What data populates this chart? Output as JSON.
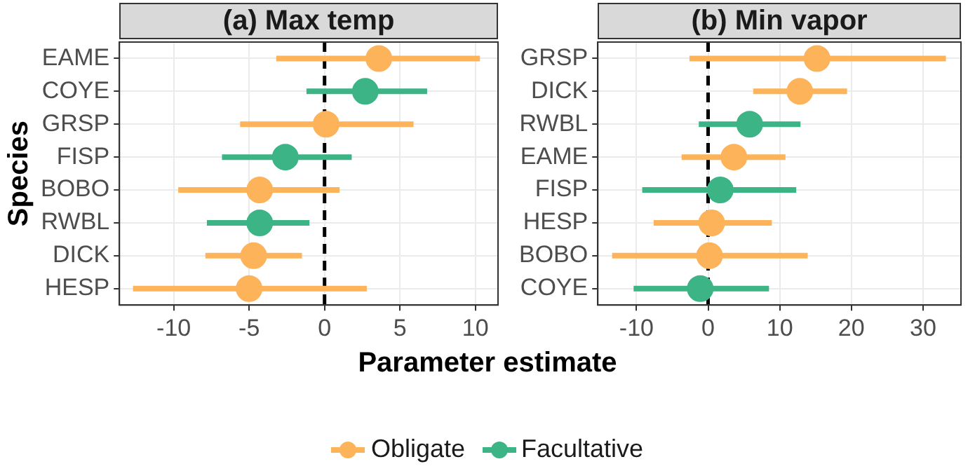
{
  "chart_data": [
    {
      "type": "scatter",
      "orientation": "horizontal",
      "title": "(a) Max temp",
      "xlabel": "Parameter estimate",
      "ylabel": "Species",
      "categories": [
        "EAME",
        "COYE",
        "GRSP",
        "FISP",
        "BOBO",
        "RWBL",
        "DICK",
        "HESP"
      ],
      "series": [
        {
          "name": "Obligate",
          "color": "#fdb35a",
          "values": [
            3.6,
            null,
            0.1,
            null,
            -4.3,
            null,
            -4.7,
            -5.0
          ],
          "errors": [
            [
              -3.2,
              10.3
            ],
            null,
            [
              -5.6,
              5.9
            ],
            null,
            [
              -9.7,
              1.0
            ],
            null,
            [
              -7.9,
              -1.5
            ],
            [
              -12.7,
              2.8
            ]
          ]
        },
        {
          "name": "Facultative",
          "color": "#3cb486",
          "values": [
            null,
            2.7,
            null,
            -2.6,
            null,
            -4.3,
            null,
            null
          ],
          "errors": [
            null,
            [
              -1.2,
              6.8
            ],
            null,
            [
              -6.8,
              1.8
            ],
            null,
            [
              -7.8,
              -1.0
            ],
            null,
            null
          ]
        }
      ],
      "xlim": [
        -13.6,
        11.5
      ],
      "xticks": [
        -10,
        -5,
        0,
        5,
        10
      ],
      "grid": true,
      "marker": "circle",
      "legend": "bottom",
      "ref_lines": [
        {
          "axis": "x",
          "value": 0,
          "line_style": "dashed",
          "color": "#000000"
        }
      ]
    },
    {
      "type": "scatter",
      "orientation": "horizontal",
      "title": "(b) Min vapor",
      "categories": [
        "GRSP",
        "DICK",
        "RWBL",
        "EAME",
        "FISP",
        "HESP",
        "BOBO",
        "COYE"
      ],
      "series": [
        {
          "color": "#fdb35a",
          "values": [
            15.2,
            12.8,
            null,
            3.6,
            null,
            0.5,
            0.2,
            null
          ],
          "errors": [
            [
              -2.6,
              33.2
            ],
            [
              6.3,
              19.4
            ],
            null,
            [
              -3.7,
              10.8
            ],
            null,
            [
              -7.6,
              8.9
            ],
            [
              -13.4,
              13.9
            ],
            null
          ]
        },
        {
          "color": "#3cb486",
          "values": [
            null,
            null,
            5.8,
            null,
            1.7,
            null,
            null,
            -1.1
          ],
          "errors": [
            null,
            null,
            [
              -1.3,
              12.9
            ],
            null,
            [
              -9.2,
              12.3
            ],
            null,
            null,
            [
              -10.4,
              8.5
            ]
          ]
        }
      ],
      "xlim": [
        -15.4,
        35.3
      ],
      "xticks": [
        -10,
        0,
        10,
        20,
        30
      ],
      "grid": true,
      "marker": "circle",
      "ref_lines": [
        {
          "axis": "x",
          "value": 0,
          "line_style": "dashed",
          "color": "#000000"
        }
      ]
    }
  ]
}
